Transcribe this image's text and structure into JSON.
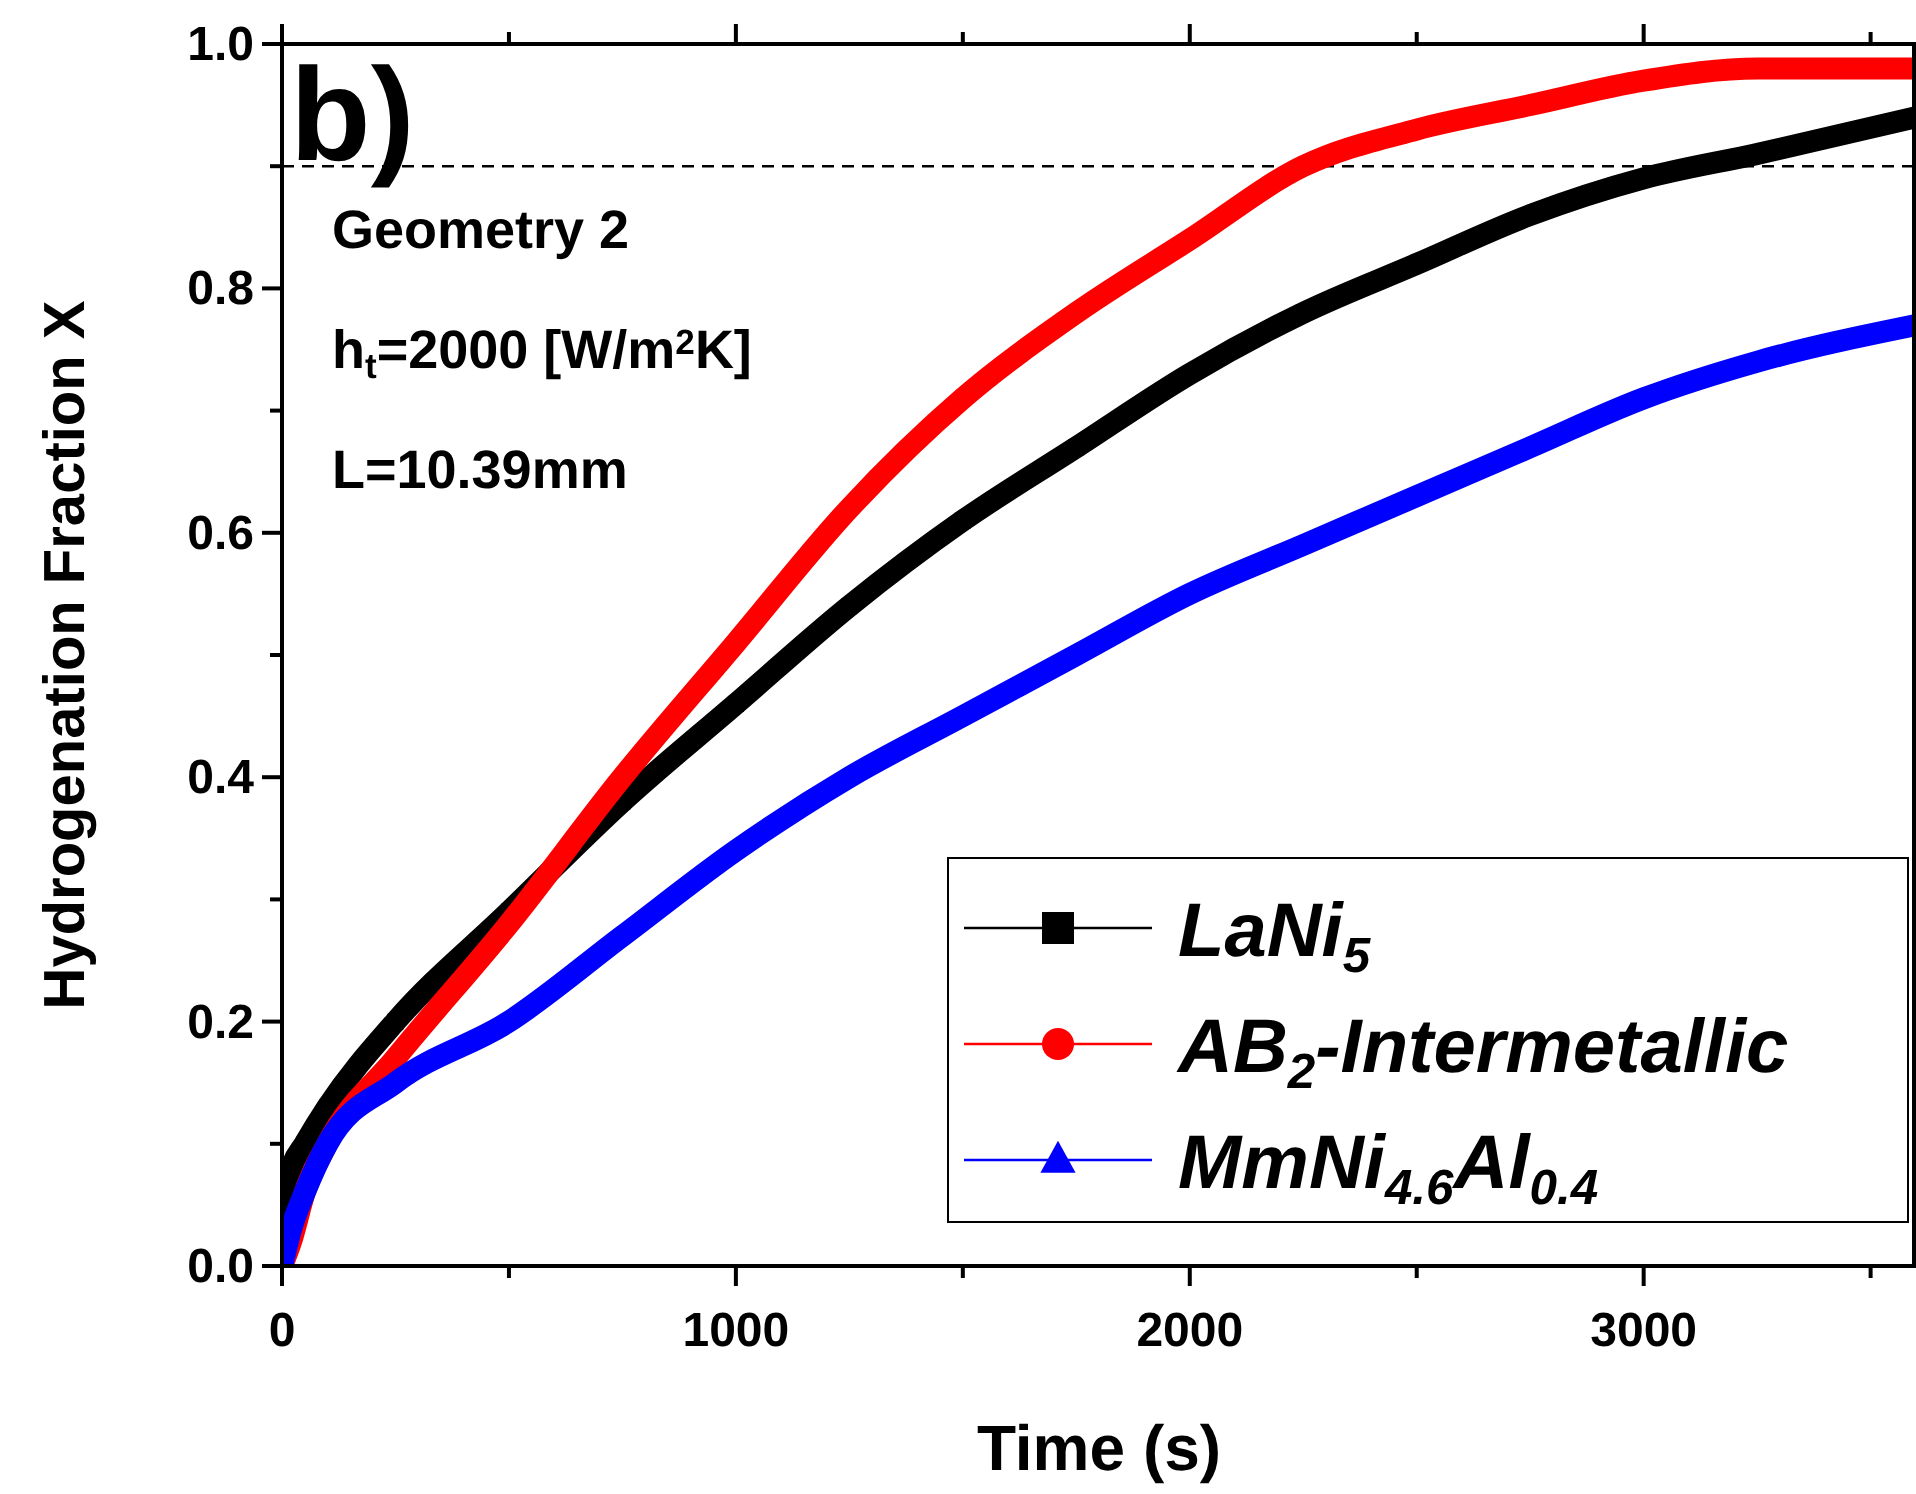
{
  "chart_data": {
    "type": "line",
    "xlabel": "Time (s)",
    "ylabel": "Hydrogenation Fraction X",
    "xlim": [
      0,
      3600
    ],
    "ylim": [
      0,
      1
    ],
    "xticks": [
      0,
      {
        "value": 500,
        "label": null
      },
      1000,
      {
        "value": 1500,
        "label": null
      },
      2000,
      {
        "value": 2500,
        "label": null
      },
      3000,
      {
        "value": 3500,
        "label": null
      }
    ],
    "yticks": [
      "0.0",
      {
        "value": 0.1,
        "label": null
      },
      0.2,
      {
        "value": 0.3,
        "label": null
      },
      0.4,
      {
        "value": 0.5,
        "label": null
      },
      0.6,
      {
        "value": 0.7,
        "label": null
      },
      0.8,
      {
        "value": 0.9,
        "label": null
      },
      "1.0"
    ],
    "x": [
      0,
      20,
      50,
      100,
      250,
      500,
      750,
      1000,
      1250,
      1500,
      1750,
      2000,
      2250,
      2500,
      2750,
      3000,
      3250,
      3600
    ],
    "series": [
      {
        "name": "LaNi$_{5}$",
        "color": "#000000",
        "marker": "square",
        "values": [
          0.05,
          0.08,
          0.1,
          0.13,
          0.2,
          0.29,
          0.38,
          0.46,
          0.54,
          0.61,
          0.67,
          0.73,
          0.78,
          0.82,
          0.86,
          0.89,
          0.91,
          0.94
        ]
      },
      {
        "name": "AB$_{2}$-Intermetallic",
        "color": "#ff0000",
        "marker": "circle",
        "values": [
          0,
          0.02,
          0.06,
          0.1,
          0.17,
          0.28,
          0.4,
          0.51,
          0.62,
          0.71,
          0.78,
          0.84,
          0.9,
          0.93,
          0.95,
          0.97,
          0.98,
          0.98
        ]
      },
      {
        "name": "MmNi$_{4.6}$Al$_{0.4}$",
        "color": "#0000ff",
        "marker": "triangle",
        "values": [
          0,
          0.03,
          0.06,
          0.1,
          0.15,
          0.2,
          0.27,
          0.34,
          0.4,
          0.45,
          0.5,
          0.55,
          0.59,
          0.63,
          0.67,
          0.71,
          0.74,
          0.77
        ]
      }
    ],
    "ref_lines": [
      {
        "axis": "y",
        "value": 0.9,
        "color": "#000000",
        "line_style": "dashed"
      }
    ],
    "annotations": [
      "b)",
      "Geometry 2",
      "h$_{t}$=2000 [W/m$^{2}$K]",
      "L=10.39mm"
    ],
    "legend": "bottom right",
    "line_style": "solid",
    "grid": false
  }
}
